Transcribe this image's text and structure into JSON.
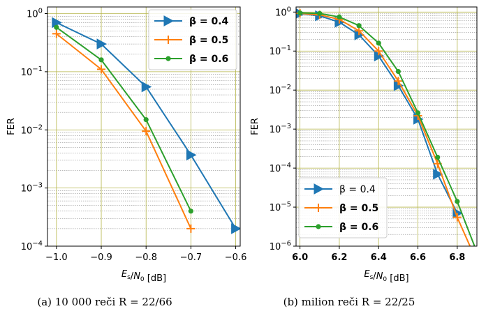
{
  "chart_data": [
    {
      "type": "line",
      "caption": "(a) 10 000 reči R = 22/66",
      "xlabel": "E_s/N_0 [dB]",
      "ylabel": "FER",
      "y_scale": "log",
      "xlim": [
        -1.02,
        -0.59
      ],
      "ylim": [
        0.0001,
        1.3
      ],
      "x_ticks": [
        "−1.0",
        "−0.9",
        "−0.8",
        "−0.7",
        "−0.6"
      ],
      "y_ticks": [
        "10^0",
        "10^-1",
        "10^-2",
        "10^-3",
        "10^-4"
      ],
      "grid": true,
      "legend_position": "top-right",
      "series": [
        {
          "name": "β = 0.4",
          "color": "#1f77b4",
          "marker": "triangle-right",
          "bold": true,
          "x": [
            -1.0,
            -0.9,
            -0.8,
            -0.7,
            -0.6
          ],
          "y": [
            0.7,
            0.3,
            0.055,
            0.0037,
            0.0002
          ]
        },
        {
          "name": "β = 0.5",
          "color": "#ff7f0e",
          "marker": "plus",
          "bold": true,
          "x": [
            -1.0,
            -0.9,
            -0.8,
            -0.7
          ],
          "y": [
            0.45,
            0.11,
            0.0095,
            0.0002
          ]
        },
        {
          "name": "β = 0.6",
          "color": "#2ca02c",
          "marker": "circle",
          "bold": true,
          "x": [
            -1.0,
            -0.9,
            -0.8,
            -0.7
          ],
          "y": [
            0.58,
            0.16,
            0.015,
            0.0004
          ]
        }
      ]
    },
    {
      "type": "line",
      "caption": "(b) milion reči R = 22/25",
      "xlabel": "E_s/N_0 [dB]",
      "ylabel": "FER",
      "y_scale": "log",
      "xlim": [
        5.98,
        6.9
      ],
      "ylim": [
        1e-06,
        1.35
      ],
      "x_ticks": [
        "6.0",
        "6.2",
        "6.4",
        "6.6",
        "6.8"
      ],
      "y_ticks": [
        "10^0",
        "10^-1",
        "10^-2",
        "10^-3",
        "10^-4",
        "10^-5",
        "10^-6"
      ],
      "grid": true,
      "legend_position": "bottom-left",
      "series": [
        {
          "name": "β = 0.4",
          "color": "#1f77b4",
          "marker": "triangle-right",
          "bold": false,
          "x": [
            6.0,
            6.1,
            6.2,
            6.3,
            6.4,
            6.5,
            6.6,
            6.7,
            6.8
          ],
          "y": [
            0.92,
            0.8,
            0.55,
            0.26,
            0.075,
            0.013,
            0.0018,
            7e-05,
            7e-06
          ]
        },
        {
          "name": "β = 0.5",
          "color": "#ff7f0e",
          "marker": "plus",
          "bold": true,
          "x": [
            6.0,
            6.1,
            6.2,
            6.3,
            6.4,
            6.5,
            6.6,
            6.7,
            6.8,
            6.9
          ],
          "y": [
            0.93,
            0.85,
            0.65,
            0.33,
            0.1,
            0.017,
            0.0022,
            0.00013,
            5.5e-06,
            4e-07
          ]
        },
        {
          "name": "β = 0.6",
          "color": "#2ca02c",
          "marker": "circle",
          "bold": true,
          "x": [
            6.0,
            6.1,
            6.2,
            6.3,
            6.4,
            6.5,
            6.6,
            6.7,
            6.8,
            6.9
          ],
          "y": [
            0.95,
            0.92,
            0.75,
            0.45,
            0.16,
            0.03,
            0.0026,
            0.00019,
            1.4e-05,
            7e-07
          ]
        }
      ]
    }
  ]
}
